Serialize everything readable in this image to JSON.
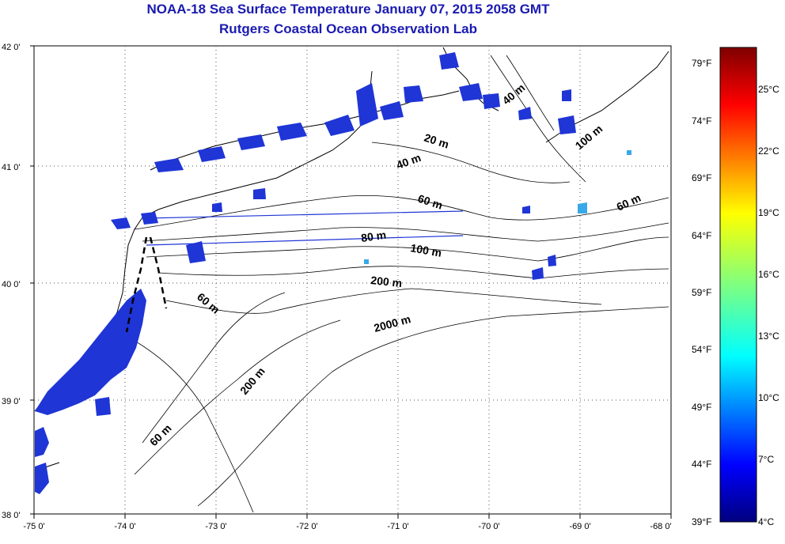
{
  "title": "NOAA-18 Sea Surface Temperature January 07, 2015 2058 GMT",
  "subtitle": "Rutgers Coastal Ocean Observation Lab",
  "colors": {
    "title": "#1a1ab0",
    "data_blue": "#1f35d6",
    "data_cyan": "#38a8e8"
  },
  "map": {
    "lon_ticks": [
      "-75 0'",
      "-74 0'",
      "-73 0'",
      "-72 0'",
      "-71 0'",
      "-70 0'",
      "-69 0'",
      "-68 0'"
    ],
    "lat_ticks": [
      "42 0'",
      "41 0'",
      "40 0'",
      "39 0'",
      "38 0'"
    ],
    "contour_labels": [
      "40 m",
      "20 m",
      "100 m",
      "40 m",
      "60 m",
      "60 m",
      "80 m",
      "100 m",
      "200 m",
      "60 m",
      "2000 m",
      "200 m",
      "60 m"
    ]
  },
  "colorbar": {
    "fahrenheit": [
      "79°F",
      "74°F",
      "69°F",
      "64°F",
      "59°F",
      "54°F",
      "49°F",
      "44°F",
      "39°F"
    ],
    "celsius": [
      "25°C",
      "22°C",
      "19°C",
      "16°C",
      "13°C",
      "10°C",
      "7°C",
      "4°C"
    ]
  }
}
